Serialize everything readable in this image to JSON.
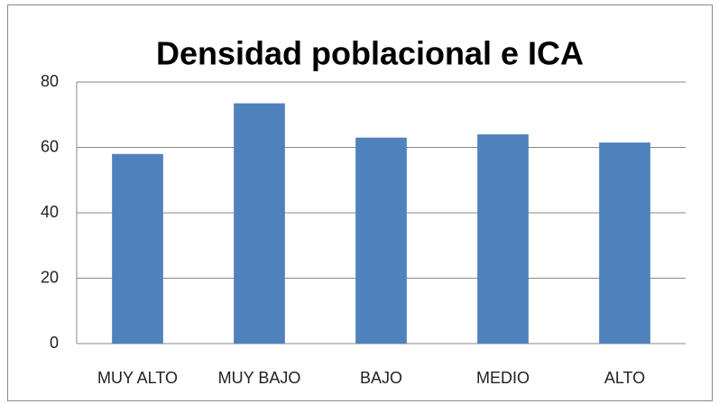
{
  "chart_data": {
    "type": "bar",
    "title": "Densidad poblacional e ICA",
    "categories": [
      "MUY ALTO",
      "MUY BAJO",
      "BAJO",
      "MEDIO",
      "ALTO"
    ],
    "values": [
      58,
      73.5,
      63,
      64,
      61.5
    ],
    "color": "#4f81bd",
    "ylim": [
      0,
      80
    ],
    "yticks": [
      0,
      20,
      40,
      60,
      80
    ],
    "grid": true
  }
}
